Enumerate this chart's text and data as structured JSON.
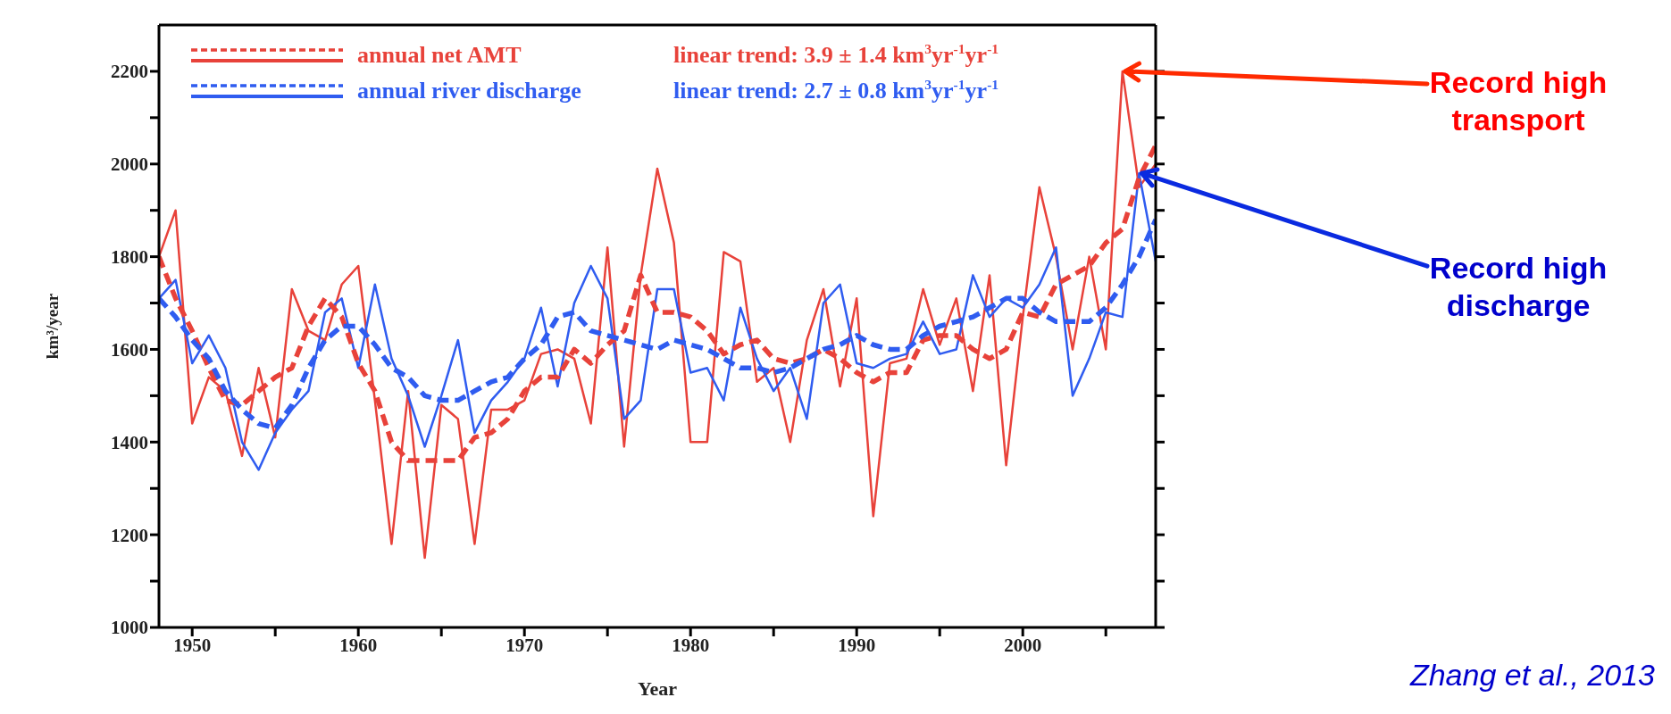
{
  "chart_data": {
    "type": "line",
    "xlabel": "Year",
    "ylabel": "km³/year",
    "x": [
      1948,
      1949,
      1950,
      1951,
      1952,
      1953,
      1954,
      1955,
      1956,
      1957,
      1958,
      1959,
      1960,
      1961,
      1962,
      1963,
      1964,
      1965,
      1966,
      1967,
      1968,
      1969,
      1970,
      1971,
      1972,
      1973,
      1974,
      1975,
      1976,
      1977,
      1978,
      1979,
      1980,
      1981,
      1982,
      1983,
      1984,
      1985,
      1986,
      1987,
      1988,
      1989,
      1990,
      1991,
      1992,
      1993,
      1994,
      1995,
      1996,
      1997,
      1998,
      1999,
      2000,
      2001,
      2002,
      2003,
      2004,
      2005,
      2006,
      2007,
      2008
    ],
    "series": [
      {
        "name": "annual net AMT",
        "color": "#e8423a",
        "line_style": "solid",
        "values": [
          1800,
          1900,
          1440,
          1540,
          1510,
          1370,
          1560,
          1410,
          1730,
          1640,
          1620,
          1740,
          1780,
          1490,
          1180,
          1510,
          1150,
          1480,
          1450,
          1180,
          1470,
          1470,
          1490,
          1590,
          1600,
          1580,
          1440,
          1820,
          1390,
          1760,
          1990,
          1830,
          1400,
          1400,
          1810,
          1790,
          1530,
          1560,
          1400,
          1620,
          1730,
          1520,
          1710,
          1240,
          1570,
          1580,
          1730,
          1610,
          1710,
          1510,
          1760,
          1350,
          1670,
          1950,
          1800,
          1600,
          1800,
          1600,
          2200,
          1950,
          2000
        ]
      },
      {
        "name": "annual river discharge",
        "color": "#2f5cf0",
        "line_style": "solid",
        "values": [
          1710,
          1750,
          1570,
          1630,
          1560,
          1400,
          1340,
          1420,
          1470,
          1510,
          1680,
          1710,
          1560,
          1740,
          1580,
          1500,
          1390,
          1500,
          1620,
          1420,
          1490,
          1530,
          1580,
          1690,
          1520,
          1700,
          1780,
          1710,
          1450,
          1490,
          1730,
          1730,
          1550,
          1560,
          1490,
          1690,
          1580,
          1510,
          1560,
          1450,
          1700,
          1740,
          1570,
          1560,
          1580,
          1590,
          1660,
          1590,
          1600,
          1760,
          1670,
          1710,
          1690,
          1740,
          1820,
          1500,
          1580,
          1680,
          1670,
          1980,
          1790
        ]
      },
      {
        "color": "#e8423a",
        "line_style": "dashed",
        "values": [
          1800,
          1710,
          1640,
          1560,
          1490,
          1480,
          1510,
          1540,
          1560,
          1650,
          1710,
          1670,
          1570,
          1510,
          1400,
          1360,
          1360,
          1360,
          1360,
          1410,
          1420,
          1450,
          1510,
          1540,
          1540,
          1600,
          1570,
          1610,
          1640,
          1760,
          1680,
          1680,
          1670,
          1640,
          1590,
          1610,
          1620,
          1580,
          1570,
          1580,
          1600,
          1580,
          1550,
          1530,
          1550,
          1550,
          1620,
          1630,
          1630,
          1600,
          1580,
          1600,
          1680,
          1670,
          1740,
          1760,
          1780,
          1830,
          1860,
          1970,
          2040
        ]
      },
      {
        "color": "#2f5cf0",
        "line_style": "dashed",
        "values": [
          1710,
          1670,
          1620,
          1580,
          1510,
          1470,
          1440,
          1430,
          1480,
          1560,
          1620,
          1650,
          1650,
          1610,
          1560,
          1540,
          1500,
          1490,
          1490,
          1510,
          1530,
          1540,
          1580,
          1610,
          1670,
          1680,
          1640,
          1630,
          1620,
          1610,
          1600,
          1620,
          1610,
          1600,
          1580,
          1560,
          1560,
          1550,
          1560,
          1580,
          1600,
          1610,
          1630,
          1610,
          1600,
          1600,
          1630,
          1650,
          1660,
          1670,
          1690,
          1710,
          1710,
          1680,
          1660,
          1660,
          1660,
          1690,
          1740,
          1800,
          1880
        ]
      }
    ],
    "xlim": [
      1948,
      2008
    ],
    "xticks": [
      1950,
      {
        "value": 1955,
        "label": null
      },
      1960,
      {
        "value": 1965,
        "label": null
      },
      1970,
      {
        "value": 1975,
        "label": null
      },
      1980,
      {
        "value": 1985,
        "label": null
      },
      1990,
      {
        "value": 1995,
        "label": null
      },
      2000,
      {
        "value": 2005,
        "label": null
      }
    ],
    "ylim": [
      1000,
      2300
    ],
    "yticks": [
      1000,
      {
        "value": 1100,
        "label": null
      },
      1200,
      {
        "value": 1300,
        "label": null
      },
      1400,
      {
        "value": 1500,
        "label": null
      },
      1600,
      {
        "value": 1700,
        "label": null
      },
      1800,
      {
        "value": 1900,
        "label": null
      },
      2000,
      {
        "value": 2100,
        "label": null
      },
      2200
    ],
    "legend": "top left",
    "marker": "none",
    "annotations": [
      "linear trend: 3.9 ± 1.4 km$^{3}$yr$^{-1}$yr$^{-1}$",
      "linear trend: 2.7 ± 0.8 km$^{3}$yr$^{-1}$yr$^{-1}$",
      {
        "text": "Record high transport",
        "x": 2006,
        "y": 2200
      },
      {
        "text": "Record high discharge",
        "x": 2007,
        "y": 1980
      },
      "Zhang et al., 2013"
    ]
  }
}
